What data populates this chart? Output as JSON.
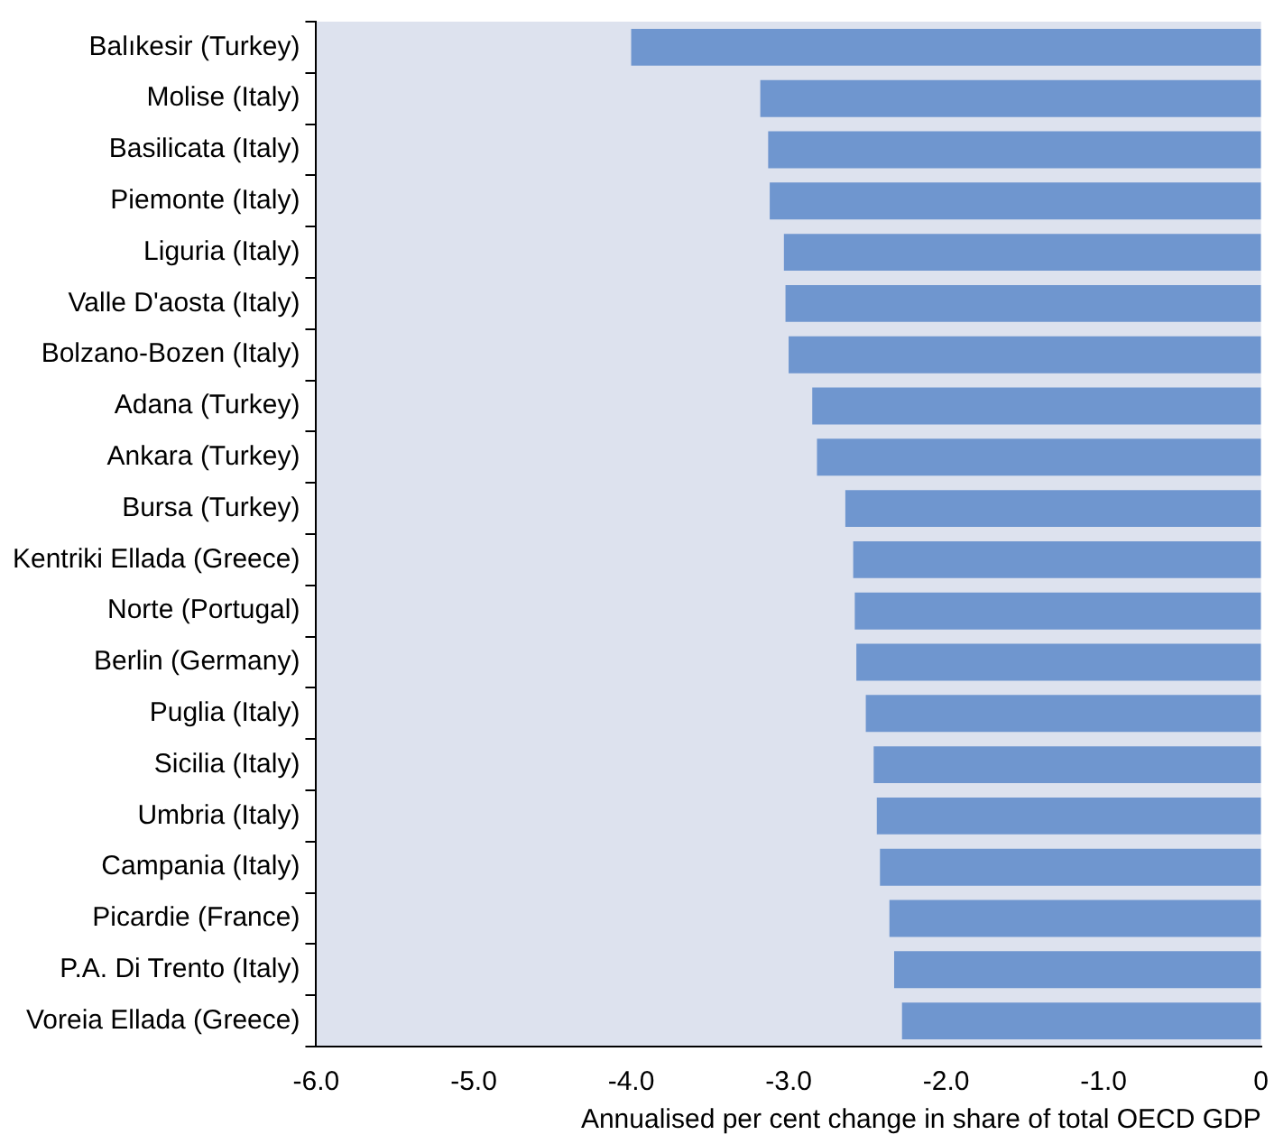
{
  "chart_data": {
    "type": "bar",
    "orientation": "horizontal",
    "xlabel": "Annualised per cent change in share of total OECD GDP",
    "categories": [
      "Balıkesir (Turkey)",
      "Molise (Italy)",
      "Basilicata (Italy)",
      "Piemonte (Italy)",
      "Liguria (Italy)",
      "Valle D'aosta (Italy)",
      "Bolzano-Bozen (Italy)",
      "Adana (Turkey)",
      "Ankara (Turkey)",
      "Bursa (Turkey)",
      "Kentriki Ellada (Greece)",
      "Norte (Portugal)",
      "Berlin (Germany)",
      "Puglia (Italy)",
      "Sicilia (Italy)",
      "Umbria (Italy)",
      "Campania (Italy)",
      "Picardie (France)",
      "P.A. Di Trento (Italy)",
      "Voreia Ellada (Greece)"
    ],
    "values": [
      -4.0,
      -3.18,
      -3.13,
      -3.12,
      -3.03,
      -3.02,
      -3.0,
      -2.85,
      -2.82,
      -2.64,
      -2.59,
      -2.58,
      -2.57,
      -2.51,
      -2.46,
      -2.44,
      -2.42,
      -2.36,
      -2.33,
      -2.28
    ],
    "color": "#6f96cf",
    "xlim": [
      -6,
      0
    ],
    "xticks": [
      {
        "value": -6,
        "label": "-6.0"
      },
      {
        "value": -5,
        "label": "-5.0"
      },
      {
        "value": -4,
        "label": "-4.0"
      },
      {
        "value": -3,
        "label": "-3.0"
      },
      {
        "value": -2,
        "label": "-2.0"
      },
      {
        "value": -1,
        "label": "-1.0"
      },
      0
    ],
    "grid": false,
    "legend": false
  }
}
